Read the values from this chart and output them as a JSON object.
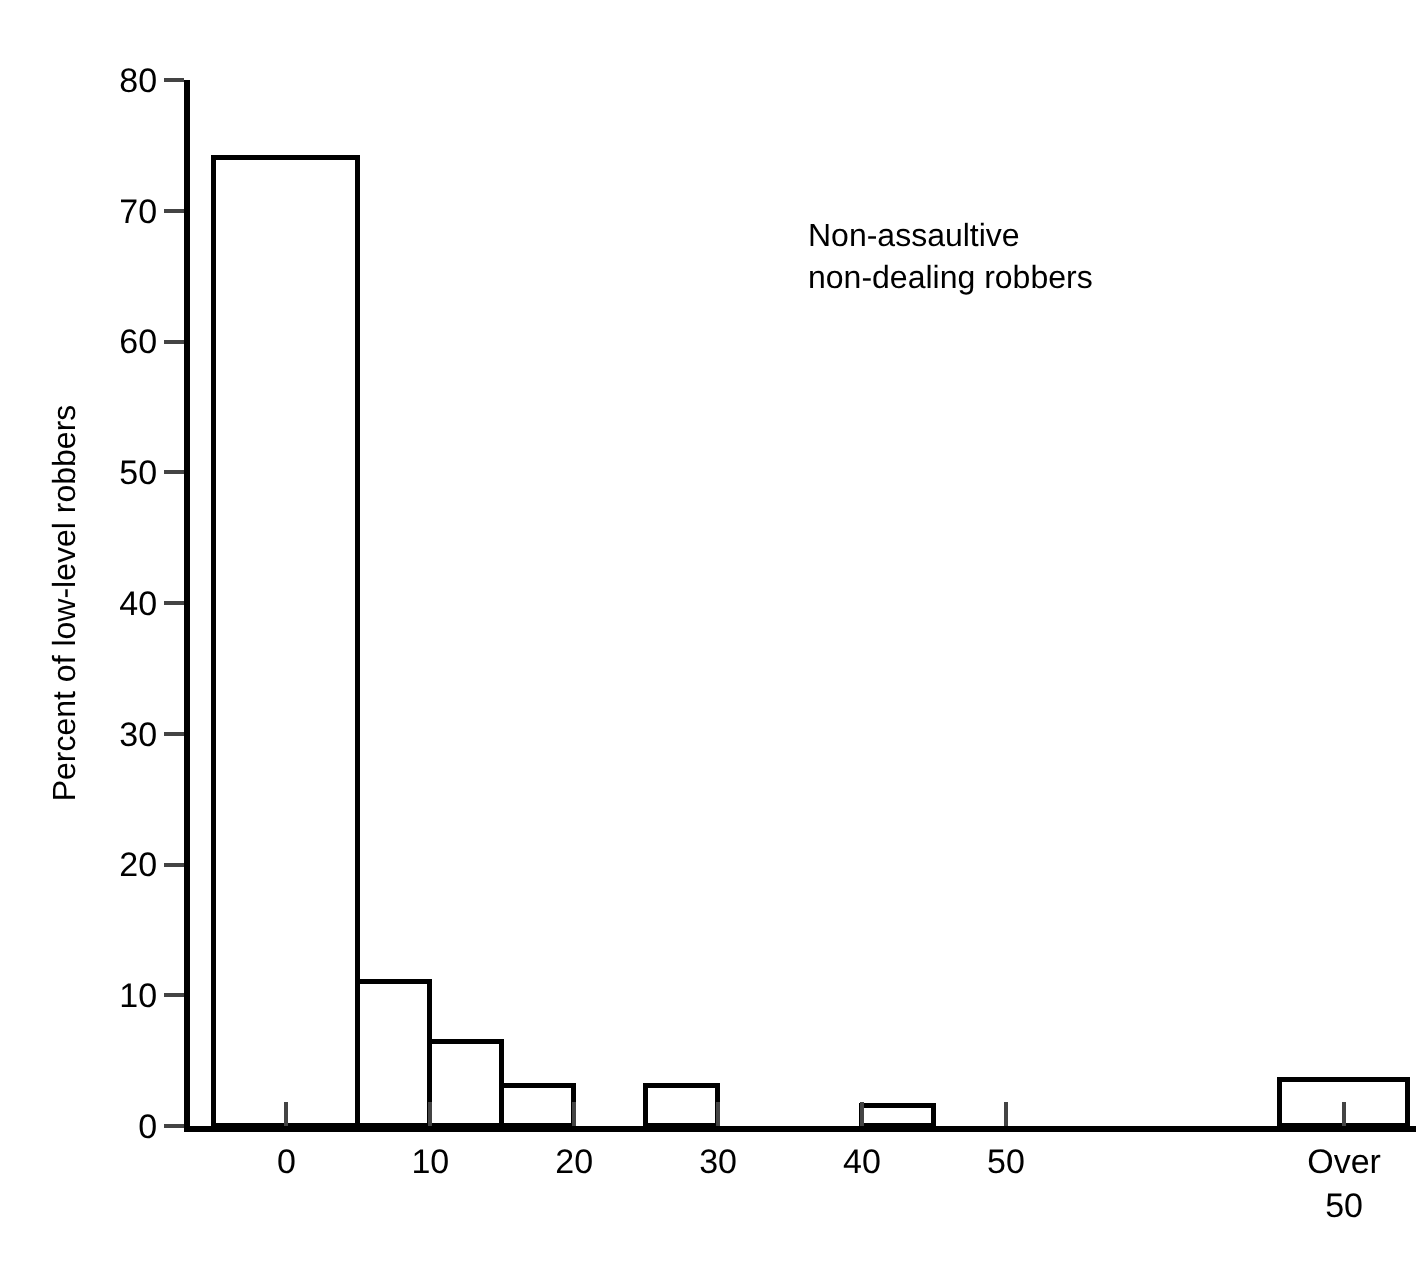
{
  "chart_data": {
    "type": "histogram",
    "ylabel": "Percent of low-level robbers",
    "bins": [
      -5,
      5,
      10,
      15,
      20,
      25,
      30,
      40,
      45,
      69,
      78
    ],
    "values": [
      74,
      11,
      6.5,
      3,
      0,
      3,
      0,
      1.5,
      0,
      3.5
    ],
    "color": "#ffffff",
    "xlim": [
      -6.7,
      78.5
    ],
    "xticks": [
      0,
      10,
      20,
      30,
      40,
      50,
      {
        "value": 73.5,
        "label": "Over\n50"
      }
    ],
    "ylim": [
      0,
      80
    ],
    "yticks": [
      0,
      10,
      20,
      30,
      40,
      50,
      60,
      70,
      80
    ],
    "grid": false,
    "annotations": [
      "Non-assaultive\nnon-dealing robbers"
    ]
  }
}
